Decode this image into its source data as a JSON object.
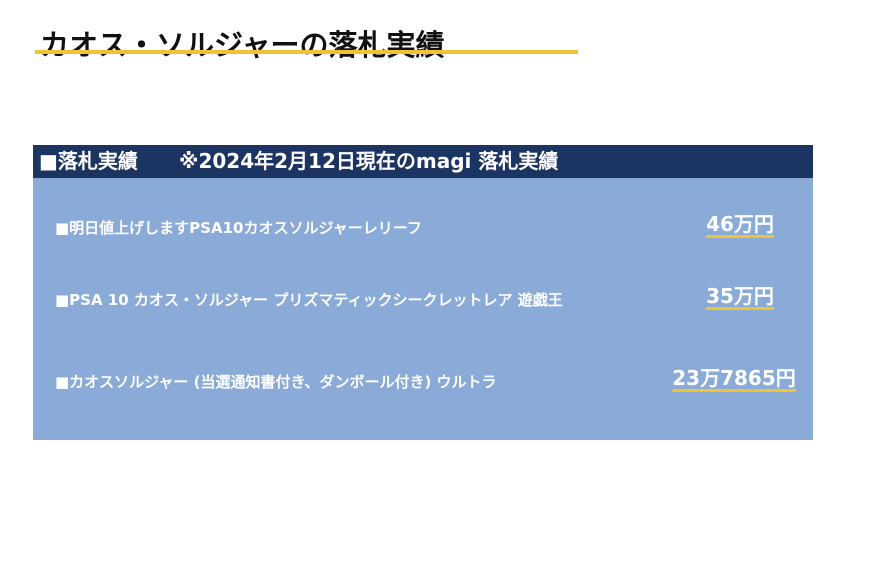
{
  "title": "カオス・ソルジャーの落札実績",
  "panel": {
    "header_label": "■落札実績",
    "header_note": "※2024年2月12日現在のmagi 落札実績",
    "items": [
      {
        "name": "■明日値上げしますPSA10カオスソルジャーレリーフ",
        "price": "46万円"
      },
      {
        "name": "■PSA 10 カオス・ソルジャー プリズマティックシークレットレア 遊戯王",
        "price": "35万円"
      },
      {
        "name": "■カオスソルジャー (当選通知書付き、ダンボール付き) ウルトラ",
        "price": "23万7865円"
      }
    ]
  }
}
